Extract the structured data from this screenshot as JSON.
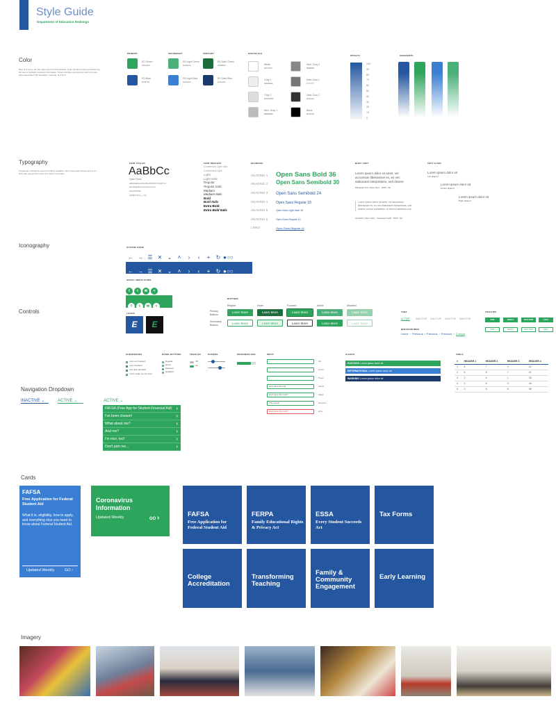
{
  "header": {
    "title": "Style Guide",
    "subtitle": "Department of Education Redesign",
    "accent": "#24579f",
    "green": "#2ea55c"
  },
  "color": {
    "title": "Color",
    "desc": "Blue and Green are the main colors for this website. Color should not feel overwhelming but use to highlight important information. Green and blue are calming colors that are often associated with education, learning, and trust.",
    "primary": {
      "label": "PRIMARY",
      "items": [
        {
          "name": "ED Green",
          "hex": "#2EA55C",
          "color": "#2ea55c"
        },
        {
          "name": "ED Blue",
          "hex": "#24579F",
          "color": "#24579f"
        }
      ]
    },
    "secondary": {
      "label": "SECONDARY",
      "items": [
        {
          "name": "ED Light Green",
          "hex": "#4CB07A",
          "color": "#4cb07a"
        },
        {
          "name": "ED Light Blue",
          "hex": "#3A7FD3",
          "color": "#3a7fd3"
        }
      ]
    },
    "tertiary": {
      "label": "TERTIARY",
      "items": [
        {
          "name": "ED Dark Green",
          "hex": "#1E6B3C",
          "color": "#1e6b3c"
        },
        {
          "name": "ED Dark Blue",
          "hex": "#193A6A",
          "color": "#193a6a"
        }
      ]
    },
    "grayscale": {
      "label": "GRAYSCALE",
      "left": [
        {
          "name": "White",
          "hex": "#FFFFFF",
          "color": "#ffffff"
        },
        {
          "name": "Gray 1",
          "hex": "#EEEEEE",
          "color": "#eeeeee"
        },
        {
          "name": "Gray 2",
          "hex": "#DDDDDD",
          "color": "#dddddd"
        },
        {
          "name": "Med. Gray 1",
          "hex": "#BBBBBB",
          "color": "#bbbbbb"
        }
      ],
      "right": [
        {
          "name": "Med. Gray 2",
          "hex": "#888888",
          "color": "#888888"
        },
        {
          "name": "Dark Gray 1",
          "hex": "#777777",
          "color": "#777777"
        },
        {
          "name": "Dark Gray 2",
          "hex": "#333333",
          "color": "#333333"
        },
        {
          "name": "Black",
          "hex": "#000000",
          "color": "#000000"
        }
      ]
    },
    "opacity": {
      "label": "OPACITY",
      "steps": [
        "100",
        "90",
        "80",
        "70",
        "60",
        "50",
        "40",
        "30",
        "20",
        "10",
        "0"
      ]
    },
    "gradients": {
      "label": "GRADIENTS"
    }
  },
  "typography": {
    "title": "Typography",
    "desc": "Typography should be clean and highly readable. Open Sans was chosen due to it's web-safe use and the many font styles it provides.",
    "font_styles_label": "FONT STYLES",
    "sample": "AaBbCc",
    "font_name": "Open Sans",
    "upper": "ABCDEFGHIJKLMNOPQRSTUVWXYZ",
    "lower": "abcdefghijklmnopqrstuvwxyz",
    "digits": "0123456789",
    "symbols": "!@#$%^&*()_+-=[]",
    "weights_label": "FONT WEIGHTS",
    "weights": [
      "Condensed Light Italic",
      "Condensed Light",
      "Light",
      "Light Italic",
      "Regular",
      "Regular Italic",
      "Medium",
      "Medium Italic",
      "Bold",
      "Bold Italic",
      "Extra Bold",
      "Extra Bold Italic"
    ],
    "headings_label": "HEADINGS",
    "headings": [
      {
        "tag": "HEADING 1",
        "text": "Open Sans Bold 36"
      },
      {
        "tag": "HEADING 2",
        "text": "Open Sans Semibold 30"
      },
      {
        "tag": "HEADING 3",
        "text": "Open Sans Semibold 24"
      },
      {
        "tag": "HEADING 4",
        "text": "Open Sans Regular 18"
      },
      {
        "tag": "HEADING 5",
        "text": "Open Sans Light Italic 18"
      },
      {
        "tag": "HEADING 6",
        "text": "Open Sans Regular 12"
      },
      {
        "tag": "LINKS",
        "text": "Open Sans Regular 14"
      }
    ],
    "body_label": "BODY COPY",
    "body_para": "Lorem ipsum dolor sit amet, vel accumsan liberavisse ex, ex nec elaboraret interpretaris, sed dicerer",
    "body_caption": "Paragraph Text | Open Sans · 16/24 · 0pt",
    "quote_para": "Lorem ipsum dolor sit amet, vel accumsan liberavisse ex, ex nec elaboraret interpretaris, sed dicerer consul consetetur. At fierent habemus eos",
    "quote_caption": "Quotation | Open Sans · Condensed Light · 16/24 · 0pt",
    "align_label": "TEXT ALIGN",
    "align": [
      {
        "text": "Lorem ipsum dolor sit",
        "caption": "Left aligned"
      },
      {
        "text": "Lorem ipsum dolor sit",
        "caption": "Center aligned"
      },
      {
        "text": "Lorem ipsum dolor sit",
        "caption": "Right aligned"
      }
    ]
  },
  "iconography": {
    "title": "Iconography",
    "system_label": "SYSTEM ICONS",
    "social_label": "SOCIAL MEDIA ICONS",
    "logos_label": "LOGOS",
    "system_icons": [
      "←",
      "→",
      "☰",
      "✕",
      "⌄",
      "˄",
      "›",
      "‹",
      "+",
      "↻",
      "●○○"
    ],
    "social_icons": [
      "f",
      "t",
      "✉",
      "<"
    ]
  },
  "controls": {
    "title": "Controls",
    "buttons_label": "BUTTONS",
    "primary_label": "Primary Buttons",
    "secondary_label": "Secondary Buttons",
    "states": [
      "Regular",
      "Hover",
      "Focused",
      "Active",
      "Disabled"
    ],
    "button_text": "Learn More",
    "tabs_label": "TABS",
    "tabs": [
      "ACTIVE",
      "INACTIVE",
      "INACTIVE",
      "INACTIVE",
      "INACTIVE"
    ],
    "breadcrumbs_label": "BREADCRUMBS",
    "breadcrumbs": [
      "Home",
      "Previous",
      "Previous",
      "Previous",
      "Current"
    ],
    "tooltips_label": "TOOLTIPS",
    "tooltips": [
      "TOP",
      "RIGHT",
      "BOTTOM",
      "LEFT"
    ],
    "checkboxes_label": "CHECKBOXES",
    "checkboxes": [
      "I am not checked",
      "I am checked!",
      "I am also checked",
      "I can't make up my mind"
    ],
    "radio_label": "RADIO BUTTONS",
    "radios": [
      "Regular",
      "Hover",
      "Selected",
      "Disabled"
    ],
    "toggles_label": "TOGGLES",
    "toggles": [
      "Off",
      "On"
    ],
    "sliders_label": "SLIDERS",
    "progress_label": "PROGRESS BAR",
    "progress": 0.75,
    "input_label": "INPUT",
    "inputs": [
      {
        "value": "",
        "state": "Init"
      },
      {
        "value": "",
        "state": "Hover"
      },
      {
        "value": "",
        "state": "Press"
      },
      {
        "value": "How does this wo|",
        "state": "Focus"
      },
      {
        "value": "How does this work?",
        "state": "Filled"
      },
      {
        "value": "This works!",
        "state": "Success"
      },
      {
        "value": "How does this work?",
        "state": "Error"
      }
    ],
    "alerts_label": "ALERTS",
    "alerts": [
      {
        "label": "SUCCESS",
        "text": "Lorem ipsum dolor sit",
        "color": "#2ea55c"
      },
      {
        "label": "INFORMATIONAL",
        "text": "Lorem ipsum dolor sit",
        "color": "#3a7fd3"
      },
      {
        "label": "WARNING",
        "text": "Lorem ipsum dolor sit",
        "color": "#193a6a"
      }
    ],
    "table_label": "TABLE",
    "table_headers": [
      "#",
      "HEADER 1",
      "HEADER 2",
      "HEADER 3",
      "HEADER 4"
    ],
    "table_rows": [
      [
        "1",
        "4",
        "7",
        "4",
        "11"
      ],
      [
        "2",
        "5",
        "8",
        "7",
        "21"
      ],
      [
        "3",
        "2",
        "4",
        "1",
        "33"
      ],
      [
        "4",
        "3",
        "5",
        "3",
        "44"
      ],
      [
        "5",
        "3",
        "5",
        "6",
        "55"
      ]
    ]
  },
  "nav": {
    "title": "Navigation Dropdown",
    "inactive": "INACTIVE",
    "active": "ACTIVE",
    "items": [
      "FAFSA (Free App for Student Financial Aid)",
      "I've been chosen!",
      "What about me?",
      "And me?",
      "I'm nice, too!",
      "Don't pick me..."
    ]
  },
  "cards": {
    "title": "Cards",
    "card1": {
      "title": "FAFSA",
      "subtitle": "Free Application for Federal Student Aid",
      "body": "What it is, eligibility, how to apply, and everything else you need to know about Federal Student Aid.",
      "footer": "Updated Weekly",
      "go": "GO"
    },
    "card2": {
      "title": "Coronavirus Information",
      "footer": "Updated Weekly",
      "go": "GO"
    },
    "tiles": [
      {
        "t1": "FAFSA",
        "t2": "Free Application for Federal Student Aid"
      },
      {
        "t1": "FERPA",
        "t2": "Family Educational Rights & Privacy Act"
      },
      {
        "t1": "ESSA",
        "t2": "Every Student Succeeds Act"
      },
      {
        "t1": "Tax Forms",
        "t2": ""
      },
      {
        "t1": "College Accreditation",
        "t2": ""
      },
      {
        "t1": "Transforming Teaching",
        "t2": ""
      },
      {
        "t1": "Family & Community Engagement",
        "t2": ""
      },
      {
        "t1": "Early Learning",
        "t2": ""
      }
    ]
  },
  "imagery": {
    "title": "Imagery"
  }
}
